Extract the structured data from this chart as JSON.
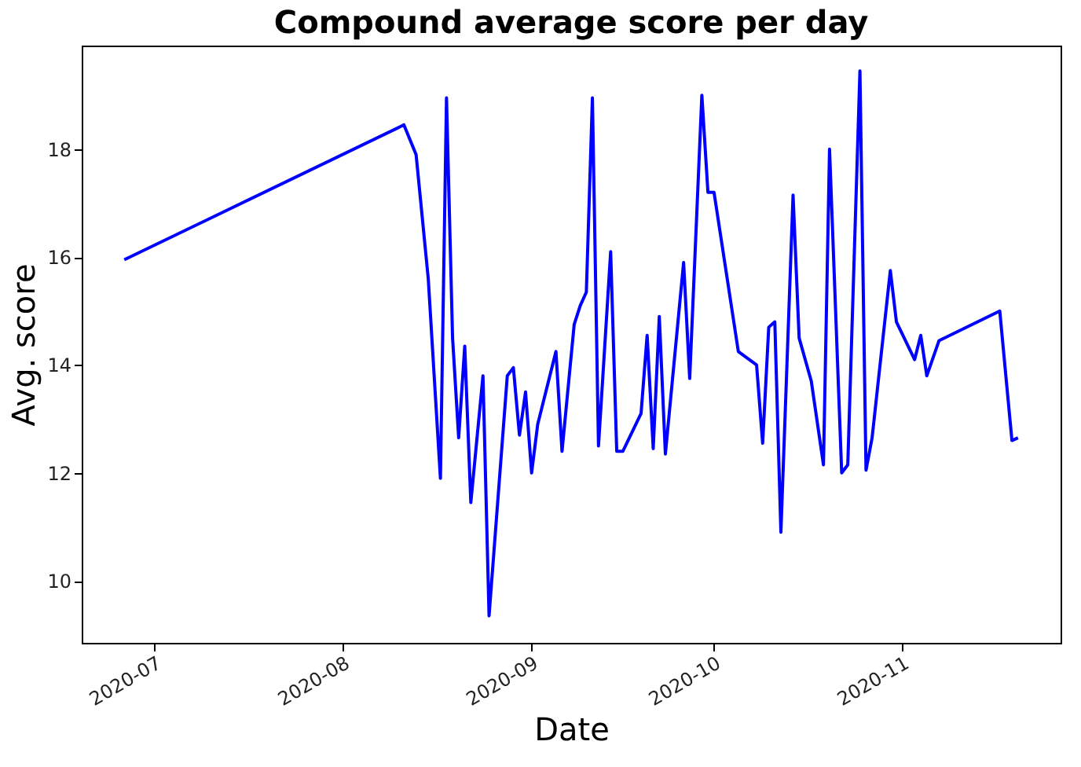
{
  "chart_data": {
    "type": "line",
    "title": "Compound average score per day",
    "xlabel": "Date",
    "ylabel": "Avg. score",
    "x": [
      "2020-06-26",
      "2020-08-11",
      "2020-08-13",
      "2020-08-15",
      "2020-08-17",
      "2020-08-18",
      "2020-08-19",
      "2020-08-20",
      "2020-08-21",
      "2020-08-22",
      "2020-08-24",
      "2020-08-25",
      "2020-08-28",
      "2020-08-29",
      "2020-08-30",
      "2020-08-31",
      "2020-09-01",
      "2020-09-02",
      "2020-09-05",
      "2020-09-06",
      "2020-09-08",
      "2020-09-09",
      "2020-09-10",
      "2020-09-11",
      "2020-09-12",
      "2020-09-14",
      "2020-09-15",
      "2020-09-16",
      "2020-09-19",
      "2020-09-20",
      "2020-09-21",
      "2020-09-22",
      "2020-09-23",
      "2020-09-26",
      "2020-09-27",
      "2020-09-29",
      "2020-09-30",
      "2020-10-01",
      "2020-10-05",
      "2020-10-08",
      "2020-10-09",
      "2020-10-10",
      "2020-10-11",
      "2020-10-12",
      "2020-10-14",
      "2020-10-15",
      "2020-10-17",
      "2020-10-19",
      "2020-10-20",
      "2020-10-22",
      "2020-10-23",
      "2020-10-25",
      "2020-10-26",
      "2020-10-27",
      "2020-10-30",
      "2020-10-31",
      "2020-11-03",
      "2020-11-04",
      "2020-11-05",
      "2020-11-07",
      "2020-11-17",
      "2020-11-19",
      "2020-11-20"
    ],
    "series": [
      {
        "color": "#0000ff",
        "values": [
          15.95,
          18.45,
          17.9,
          15.6,
          11.9,
          18.95,
          14.5,
          12.65,
          14.35,
          11.45,
          13.8,
          9.35,
          13.8,
          13.95,
          12.7,
          13.5,
          12.0,
          12.9,
          14.25,
          12.4,
          14.75,
          15.1,
          15.35,
          18.95,
          12.5,
          16.1,
          12.4,
          12.4,
          13.1,
          14.55,
          12.45,
          14.9,
          12.35,
          15.9,
          13.75,
          19.0,
          17.2,
          17.2,
          14.25,
          14.0,
          12.55,
          14.7,
          14.8,
          10.9,
          17.15,
          14.5,
          13.7,
          12.15,
          18.0,
          12.0,
          12.15,
          19.45,
          12.05,
          12.65,
          15.75,
          14.8,
          14.1,
          14.55,
          13.8,
          14.45,
          15.0,
          12.6,
          12.65
        ]
      }
    ],
    "xlim": [
      "2020-06-19",
      "2020-11-27"
    ],
    "xticks": [
      "2020-07",
      "2020-08",
      "2020-09",
      "2020-10",
      "2020-11"
    ],
    "ylim": [
      8.85,
      19.92
    ],
    "yticks": [
      10,
      12,
      14,
      16,
      18
    ],
    "grid": false,
    "marker": "none",
    "line_style": "solid"
  }
}
